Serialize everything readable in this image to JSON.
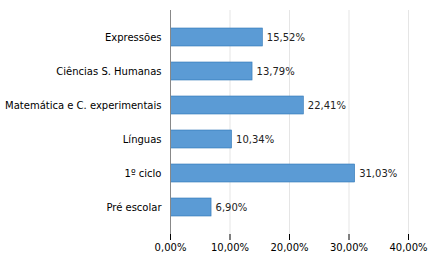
{
  "chart_data": {
    "type": "bar",
    "orientation": "horizontal",
    "categories": [
      "Pré escolar",
      "1º ciclo",
      "Línguas",
      "Matemática e C. experimentais",
      "Ciências S. Humanas",
      "Expressões"
    ],
    "values": [
      6.9,
      31.03,
      10.34,
      22.41,
      13.79,
      15.52
    ],
    "value_labels": [
      "6,90%",
      "31,03%",
      "10,34%",
      "22,41%",
      "13,79%",
      "15,52%"
    ],
    "data_labels": true,
    "color": "#5B9BD5",
    "xlim": [
      0,
      40
    ],
    "xticks": [
      {
        "value": 0,
        "label": "0,00%"
      },
      {
        "value": 10,
        "label": "10,00%"
      },
      {
        "value": 20,
        "label": "20,00%"
      },
      {
        "value": 30,
        "label": "30,00%"
      },
      {
        "value": 40,
        "label": "40,00%"
      }
    ],
    "grid": true
  }
}
